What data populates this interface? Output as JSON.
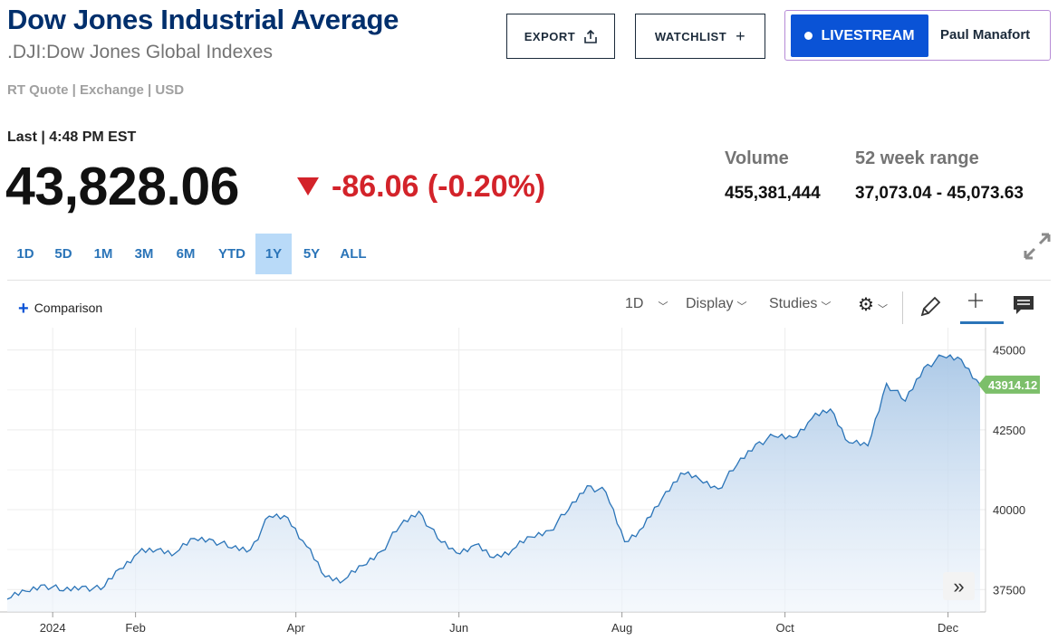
{
  "header": {
    "title": "Dow Jones Industrial Average",
    "subtitle": ".DJI:Dow Jones Global Indexes",
    "quote_meta": "RT Quote | Exchange | USD"
  },
  "actions": {
    "export_label": "EXPORT",
    "watchlist_label": "WATCHLIST",
    "livestream_label": "LIVESTREAM",
    "user_name": "Paul Manafort"
  },
  "quote": {
    "last_label": "Last | 4:48 PM EST",
    "price": "43,828.06",
    "change": "-86.06 (-0.20%)",
    "change_color": "#d3232a"
  },
  "stats": {
    "volume_label": "Volume",
    "volume_value": "455,381,444",
    "range_label": "52 week range",
    "range_value": "37,073.04 - 45,073.63"
  },
  "ranges": [
    {
      "label": "1D",
      "active": false
    },
    {
      "label": "5D",
      "active": false
    },
    {
      "label": "1M",
      "active": false
    },
    {
      "label": "3M",
      "active": false
    },
    {
      "label": "6M",
      "active": false
    },
    {
      "label": "YTD",
      "active": false
    },
    {
      "label": "1Y",
      "active": true
    },
    {
      "label": "5Y",
      "active": false
    },
    {
      "label": "ALL",
      "active": false
    }
  ],
  "toolbar": {
    "comparison_label": "Comparison",
    "interval_label": "1D",
    "display_label": "Display",
    "studies_label": "Studies",
    "icons": [
      "gear-icon",
      "pencil-icon",
      "crosshair-icon",
      "comment-icon",
      "expand-icon",
      "double-chevron-right-icon"
    ]
  },
  "chart_data": {
    "type": "area",
    "line_color": "#2a74b8",
    "fill_color": "#a9c7e6",
    "last_value_label": "43914.12",
    "last_value_color": "#7cbf6a",
    "ylim": [
      36800,
      45300
    ],
    "y_ticks": [
      "45000",
      "42500",
      "40000",
      "37500"
    ],
    "x_ticks": [
      "2024",
      "Feb",
      "Apr",
      "Jun",
      "Aug",
      "Oct",
      "Dec"
    ],
    "grid": true,
    "x": [
      "2023-12-15",
      "2023-12-22",
      "2023-12-29",
      "2024-01-05",
      "2024-01-12",
      "2024-01-19",
      "2024-01-26",
      "2024-02-02",
      "2024-02-09",
      "2024-02-16",
      "2024-02-23",
      "2024-03-01",
      "2024-03-08",
      "2024-03-15",
      "2024-03-22",
      "2024-03-29",
      "2024-04-05",
      "2024-04-12",
      "2024-04-19",
      "2024-04-26",
      "2024-05-03",
      "2024-05-10",
      "2024-05-17",
      "2024-05-24",
      "2024-05-31",
      "2024-06-07",
      "2024-06-14",
      "2024-06-21",
      "2024-06-28",
      "2024-07-05",
      "2024-07-12",
      "2024-07-19",
      "2024-07-26",
      "2024-08-02",
      "2024-08-09",
      "2024-08-16",
      "2024-08-23",
      "2024-08-30",
      "2024-09-06",
      "2024-09-13",
      "2024-09-20",
      "2024-09-27",
      "2024-10-04",
      "2024-10-11",
      "2024-10-18",
      "2024-10-25",
      "2024-11-01",
      "2024-11-08",
      "2024-11-15",
      "2024-11-22",
      "2024-11-29",
      "2024-12-06",
      "2024-12-13"
    ],
    "values": [
      37200,
      37450,
      37650,
      37460,
      37600,
      37500,
      38150,
      38650,
      38750,
      38650,
      39100,
      39050,
      38800,
      38750,
      39800,
      39750,
      38850,
      37900,
      37800,
      38250,
      38700,
      39500,
      39950,
      39100,
      38650,
      38900,
      38500,
      38750,
      39150,
      39350,
      40000,
      40750,
      40550,
      39000,
      39450,
      40350,
      41150,
      40950,
      40650,
      41400,
      42050,
      42300,
      42250,
      42850,
      43150,
      42100,
      42000,
      43950,
      43400,
      44450,
      44800,
      44700,
      43914
    ]
  }
}
